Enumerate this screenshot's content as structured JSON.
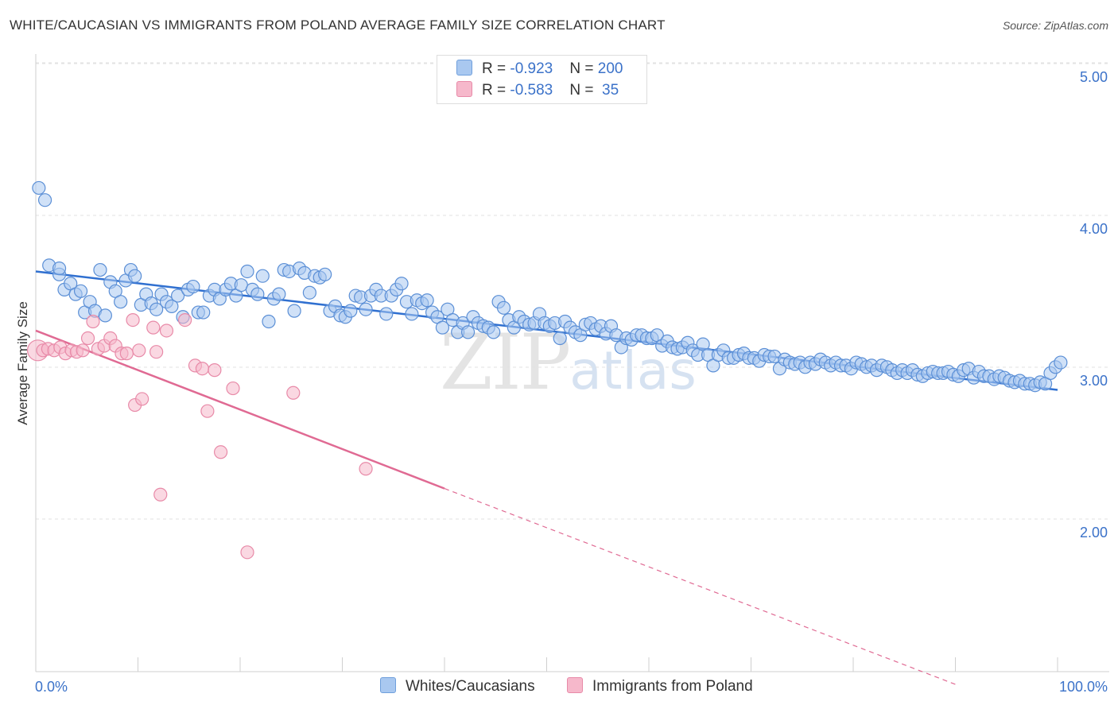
{
  "title": "WHITE/CAUCASIAN VS IMMIGRANTS FROM POLAND AVERAGE FAMILY SIZE CORRELATION CHART",
  "source": "Source: ZipAtlas.com",
  "watermark": {
    "zip": "ZIP",
    "atlas": "atlas"
  },
  "legend": {
    "r_label": "R = ",
    "n_label": "N = ",
    "rows": [
      {
        "r": "-0.923",
        "n": "200",
        "color": "#a9c8f0",
        "border": "#6f9fdc"
      },
      {
        "r": "-0.583",
        "n": " 35",
        "color": "#f6b8cb",
        "border": "#e88aa8"
      }
    ]
  },
  "chart_data": {
    "type": "scatter",
    "xlabel": "",
    "ylabel": "Average Family Size",
    "xlim": [
      0,
      100
    ],
    "ylim": [
      1.0,
      5.1
    ],
    "x_tick_labels": [
      "0.0%",
      "100.0%"
    ],
    "y_ticks": [
      2.0,
      3.0,
      4.0,
      5.0
    ],
    "y_tick_labels": [
      "2.00",
      "3.00",
      "4.00",
      "5.00"
    ],
    "grid": true,
    "legend_position": "bottom",
    "series": [
      {
        "name": "Whites/Caucasians",
        "color": "#a9c8f0",
        "stroke": "#5b8fd6",
        "line_color": "#3070d0",
        "trend": {
          "x0": 0,
          "y0": 3.72,
          "x1": 100,
          "y1": 2.94
        },
        "points": [
          [
            0.3,
            4.27
          ],
          [
            0.9,
            4.19
          ],
          [
            1.3,
            3.76
          ],
          [
            2.3,
            3.7
          ],
          [
            2.3,
            3.74
          ],
          [
            2.8,
            3.6
          ],
          [
            3.4,
            3.64
          ],
          [
            3.9,
            3.57
          ],
          [
            4.4,
            3.59
          ],
          [
            4.8,
            3.45
          ],
          [
            5.3,
            3.52
          ],
          [
            5.8,
            3.46
          ],
          [
            6.3,
            3.73
          ],
          [
            6.8,
            3.43
          ],
          [
            7.3,
            3.65
          ],
          [
            7.8,
            3.59
          ],
          [
            8.3,
            3.52
          ],
          [
            8.8,
            3.66
          ],
          [
            9.3,
            3.73
          ],
          [
            9.7,
            3.69
          ],
          [
            10.3,
            3.5
          ],
          [
            10.8,
            3.57
          ],
          [
            11.3,
            3.51
          ],
          [
            11.8,
            3.47
          ],
          [
            12.3,
            3.57
          ],
          [
            12.8,
            3.52
          ],
          [
            13.3,
            3.49
          ],
          [
            13.9,
            3.56
          ],
          [
            14.4,
            3.42
          ],
          [
            14.9,
            3.6
          ],
          [
            15.4,
            3.62
          ],
          [
            15.9,
            3.45
          ],
          [
            16.4,
            3.45
          ],
          [
            17.0,
            3.56
          ],
          [
            17.5,
            3.6
          ],
          [
            18.0,
            3.54
          ],
          [
            18.6,
            3.6
          ],
          [
            19.1,
            3.64
          ],
          [
            19.6,
            3.56
          ],
          [
            20.1,
            3.63
          ],
          [
            20.7,
            3.72
          ],
          [
            21.2,
            3.6
          ],
          [
            21.7,
            3.57
          ],
          [
            22.2,
            3.69
          ],
          [
            22.8,
            3.39
          ],
          [
            23.3,
            3.54
          ],
          [
            23.8,
            3.57
          ],
          [
            24.3,
            3.73
          ],
          [
            24.8,
            3.72
          ],
          [
            25.3,
            3.46
          ],
          [
            25.8,
            3.74
          ],
          [
            26.3,
            3.71
          ],
          [
            26.8,
            3.58
          ],
          [
            27.3,
            3.69
          ],
          [
            27.8,
            3.68
          ],
          [
            28.3,
            3.7
          ],
          [
            28.8,
            3.46
          ],
          [
            29.3,
            3.49
          ],
          [
            29.8,
            3.43
          ],
          [
            30.3,
            3.42
          ],
          [
            30.8,
            3.46
          ],
          [
            31.3,
            3.56
          ],
          [
            31.8,
            3.55
          ],
          [
            32.3,
            3.47
          ],
          [
            32.8,
            3.56
          ],
          [
            33.3,
            3.6
          ],
          [
            33.8,
            3.56
          ],
          [
            34.3,
            3.44
          ],
          [
            34.8,
            3.56
          ],
          [
            35.3,
            3.6
          ],
          [
            35.8,
            3.64
          ],
          [
            36.3,
            3.52
          ],
          [
            36.8,
            3.44
          ],
          [
            37.3,
            3.53
          ],
          [
            37.8,
            3.51
          ],
          [
            38.3,
            3.53
          ],
          [
            38.8,
            3.45
          ],
          [
            39.3,
            3.42
          ],
          [
            39.8,
            3.35
          ],
          [
            40.3,
            3.47
          ],
          [
            40.8,
            3.4
          ],
          [
            41.3,
            3.32
          ],
          [
            41.8,
            3.38
          ],
          [
            42.3,
            3.32
          ],
          [
            42.8,
            3.42
          ],
          [
            43.3,
            3.38
          ],
          [
            43.8,
            3.36
          ],
          [
            44.3,
            3.35
          ],
          [
            44.8,
            3.32
          ],
          [
            45.3,
            3.52
          ],
          [
            45.8,
            3.48
          ],
          [
            46.3,
            3.4
          ],
          [
            46.8,
            3.35
          ],
          [
            47.3,
            3.42
          ],
          [
            47.8,
            3.39
          ],
          [
            48.3,
            3.37
          ],
          [
            48.8,
            3.38
          ],
          [
            49.3,
            3.44
          ],
          [
            49.8,
            3.38
          ],
          [
            50.3,
            3.36
          ],
          [
            50.8,
            3.38
          ],
          [
            51.3,
            3.28
          ],
          [
            51.8,
            3.39
          ],
          [
            52.3,
            3.35
          ],
          [
            52.8,
            3.32
          ],
          [
            53.3,
            3.3
          ],
          [
            53.8,
            3.37
          ],
          [
            54.3,
            3.38
          ],
          [
            54.8,
            3.34
          ],
          [
            55.3,
            3.36
          ],
          [
            55.8,
            3.31
          ],
          [
            56.3,
            3.36
          ],
          [
            56.8,
            3.3
          ],
          [
            57.3,
            3.22
          ],
          [
            57.8,
            3.28
          ],
          [
            58.3,
            3.27
          ],
          [
            58.8,
            3.3
          ],
          [
            59.3,
            3.3
          ],
          [
            59.8,
            3.28
          ],
          [
            60.3,
            3.28
          ],
          [
            60.8,
            3.3
          ],
          [
            61.3,
            3.23
          ],
          [
            61.8,
            3.26
          ],
          [
            62.3,
            3.22
          ],
          [
            62.8,
            3.21
          ],
          [
            63.3,
            3.22
          ],
          [
            63.8,
            3.25
          ],
          [
            64.3,
            3.2
          ],
          [
            64.8,
            3.17
          ],
          [
            65.3,
            3.24
          ],
          [
            65.8,
            3.17
          ],
          [
            66.3,
            3.1
          ],
          [
            66.8,
            3.17
          ],
          [
            67.3,
            3.2
          ],
          [
            67.8,
            3.15
          ],
          [
            68.3,
            3.15
          ],
          [
            68.8,
            3.17
          ],
          [
            69.3,
            3.18
          ],
          [
            69.8,
            3.15
          ],
          [
            70.3,
            3.15
          ],
          [
            70.8,
            3.13
          ],
          [
            71.3,
            3.17
          ],
          [
            71.8,
            3.16
          ],
          [
            72.3,
            3.16
          ],
          [
            72.8,
            3.08
          ],
          [
            73.3,
            3.14
          ],
          [
            73.8,
            3.12
          ],
          [
            74.3,
            3.11
          ],
          [
            74.8,
            3.12
          ],
          [
            75.3,
            3.09
          ],
          [
            75.8,
            3.12
          ],
          [
            76.3,
            3.11
          ],
          [
            76.8,
            3.14
          ],
          [
            77.3,
            3.12
          ],
          [
            77.8,
            3.1
          ],
          [
            78.3,
            3.12
          ],
          [
            78.8,
            3.1
          ],
          [
            79.3,
            3.1
          ],
          [
            79.8,
            3.08
          ],
          [
            80.3,
            3.12
          ],
          [
            80.8,
            3.11
          ],
          [
            81.3,
            3.09
          ],
          [
            81.8,
            3.1
          ],
          [
            82.3,
            3.07
          ],
          [
            82.8,
            3.1
          ],
          [
            83.3,
            3.09
          ],
          [
            83.8,
            3.07
          ],
          [
            84.3,
            3.05
          ],
          [
            84.8,
            3.07
          ],
          [
            85.3,
            3.05
          ],
          [
            85.8,
            3.07
          ],
          [
            86.3,
            3.04
          ],
          [
            86.8,
            3.03
          ],
          [
            87.3,
            3.05
          ],
          [
            87.8,
            3.06
          ],
          [
            88.3,
            3.05
          ],
          [
            88.8,
            3.05
          ],
          [
            89.3,
            3.06
          ],
          [
            89.8,
            3.04
          ],
          [
            90.3,
            3.03
          ],
          [
            90.8,
            3.07
          ],
          [
            91.3,
            3.08
          ],
          [
            91.8,
            3.02
          ],
          [
            92.3,
            3.06
          ],
          [
            92.8,
            3.03
          ],
          [
            93.3,
            3.03
          ],
          [
            93.8,
            3.01
          ],
          [
            94.3,
            3.03
          ],
          [
            94.8,
            3.02
          ],
          [
            95.3,
            3.0
          ],
          [
            95.8,
            2.99
          ],
          [
            96.3,
            3.0
          ],
          [
            96.8,
            2.98
          ],
          [
            97.3,
            2.98
          ],
          [
            97.8,
            2.97
          ],
          [
            98.3,
            2.99
          ],
          [
            98.8,
            2.98
          ],
          [
            99.3,
            3.05
          ],
          [
            99.8,
            3.09
          ],
          [
            100.3,
            3.12
          ]
        ]
      },
      {
        "name": "Immigrants from Poland",
        "color": "#f6b8cb",
        "stroke": "#e88aa8",
        "line_color": "#e06a93",
        "trend": {
          "x0": 0,
          "y0": 3.33,
          "x1": 40,
          "y1": 2.29,
          "dash_x1": 90,
          "dash_y1": 1.0
        },
        "points": [
          [
            0.2,
            3.2
          ],
          [
            0.7,
            3.2
          ],
          [
            1.2,
            3.21
          ],
          [
            1.8,
            3.2
          ],
          [
            2.4,
            3.22
          ],
          [
            2.9,
            3.18
          ],
          [
            3.5,
            3.2
          ],
          [
            4.0,
            3.19
          ],
          [
            4.6,
            3.2
          ],
          [
            5.1,
            3.28
          ],
          [
            5.6,
            3.39
          ],
          [
            6.1,
            3.21
          ],
          [
            6.7,
            3.23
          ],
          [
            7.3,
            3.28
          ],
          [
            7.8,
            3.23
          ],
          [
            8.4,
            3.18
          ],
          [
            8.9,
            3.18
          ],
          [
            9.5,
            3.4
          ],
          [
            9.7,
            2.84
          ],
          [
            10.1,
            3.2
          ],
          [
            10.4,
            2.88
          ],
          [
            11.5,
            3.35
          ],
          [
            11.8,
            3.19
          ],
          [
            12.2,
            2.25
          ],
          [
            12.8,
            3.33
          ],
          [
            14.6,
            3.4
          ],
          [
            15.6,
            3.1
          ],
          [
            16.3,
            3.08
          ],
          [
            16.8,
            2.8
          ],
          [
            17.5,
            3.07
          ],
          [
            18.1,
            2.53
          ],
          [
            19.3,
            2.95
          ],
          [
            20.7,
            1.87
          ],
          [
            25.2,
            2.92
          ],
          [
            32.3,
            2.42
          ]
        ]
      }
    ]
  }
}
